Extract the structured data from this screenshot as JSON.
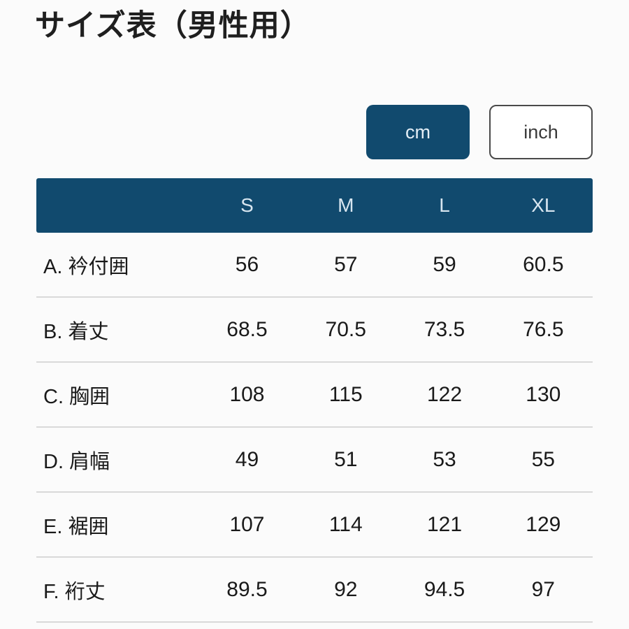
{
  "page": {
    "title": "サイズ表（男性用）"
  },
  "unit_toggle": {
    "cm_label": "cm",
    "inch_label": "inch",
    "selected": "cm"
  },
  "colors": {
    "navy": "#114a6e",
    "header_text": "#d8e6f0",
    "body_text": "#1a1a1a",
    "divider": "#d9d9d9",
    "inch_border": "#4a4a4a",
    "background": "#fbfbfb"
  },
  "table": {
    "unit": "cm",
    "columns": [
      "S",
      "M",
      "L",
      "XL"
    ],
    "rows": [
      {
        "label": "A. 衿付囲",
        "values": [
          "56",
          "57",
          "59",
          "60.5"
        ]
      },
      {
        "label": "B. 着丈",
        "values": [
          "68.5",
          "70.5",
          "73.5",
          "76.5"
        ]
      },
      {
        "label": "C. 胸囲",
        "values": [
          "108",
          "115",
          "122",
          "130"
        ]
      },
      {
        "label": "D. 肩幅",
        "values": [
          "49",
          "51",
          "53",
          "55"
        ]
      },
      {
        "label": "E. 裾囲",
        "values": [
          "107",
          "114",
          "121",
          "129"
        ]
      },
      {
        "label": "F. 裄丈",
        "values": [
          "89.5",
          "92",
          "94.5",
          "97"
        ]
      }
    ]
  }
}
